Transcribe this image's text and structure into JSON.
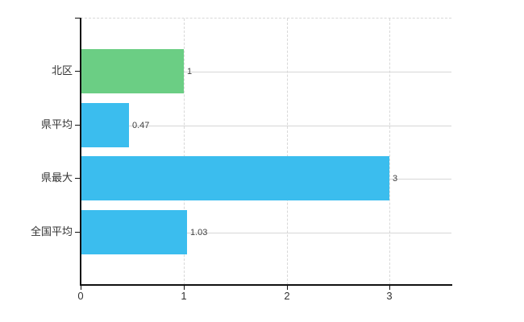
{
  "chart_data": {
    "type": "bar",
    "orientation": "horizontal",
    "title": "",
    "xlabel": "",
    "ylabel": "",
    "categories": [
      "北区",
      "県平均",
      "県最大",
      "全国平均"
    ],
    "values": [
      1,
      0.47,
      3,
      1.03
    ],
    "value_labels": [
      "1",
      "0.47",
      "3",
      "1.03"
    ],
    "bar_colors": [
      "#6bce84",
      "#3bbdee",
      "#3bbdee",
      "#3bbdee"
    ],
    "x_tick_labels": [
      "0",
      "1",
      "2",
      "3"
    ],
    "x_tick_values": [
      0,
      1,
      2,
      3
    ],
    "xlim": [
      0,
      3.6
    ],
    "grid": "on",
    "legend": "none"
  },
  "colors": {
    "background": "#ffffff",
    "bar_green": "#6bce84",
    "bar_blue": "#3bbdee",
    "grid_solid": "#d6d6d6",
    "grid_dashed": "#d8d8d8",
    "axis": "#111111",
    "category_text": "#333333",
    "value_text": "#404040"
  }
}
